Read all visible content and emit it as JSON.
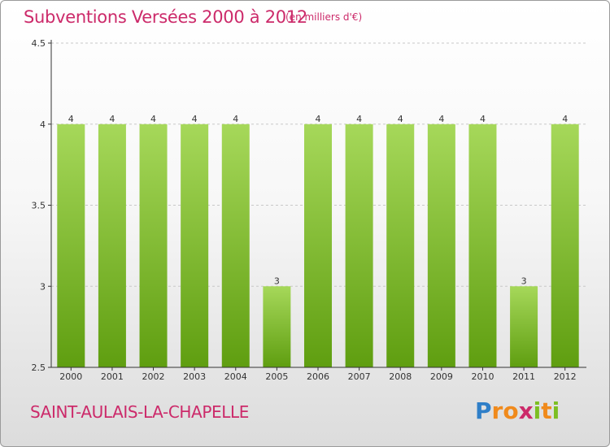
{
  "header": {
    "title": "Subventions Versées 2000 à 2012",
    "unit_note": "(en milliers d'€)"
  },
  "commune": "SAINT-AULAIS-LA-CHAPELLE",
  "brand": {
    "name": "Proxiti",
    "letters": [
      {
        "ch": "P",
        "color": "#2f7fc8"
      },
      {
        "ch": "r",
        "color": "#f08a1c"
      },
      {
        "ch": "o",
        "color": "#f08a1c"
      },
      {
        "ch": "x",
        "color": "#cc2a6a"
      },
      {
        "ch": "i",
        "color": "#7cbf22"
      },
      {
        "ch": "t",
        "color": "#f08a1c"
      },
      {
        "ch": "i",
        "color": "#7cbf22"
      }
    ]
  },
  "colors": {
    "title": "#cc2a6a",
    "bar_light": "#a6d85a",
    "bar_dark": "#5f9e10",
    "axis": "#333333",
    "grid": "#c8c8c8"
  },
  "chart_data": {
    "type": "bar",
    "categories": [
      "2000",
      "2001",
      "2002",
      "2003",
      "2004",
      "2005",
      "2006",
      "2007",
      "2008",
      "2009",
      "2010",
      "2011",
      "2012"
    ],
    "values": [
      4,
      4,
      4,
      4,
      4,
      3,
      4,
      4,
      4,
      4,
      4,
      3,
      4
    ],
    "data_labels": [
      "4",
      "4",
      "4",
      "4",
      "4",
      "3",
      "4",
      "4",
      "4",
      "4",
      "4",
      "3",
      "4"
    ],
    "ylim": [
      2.5,
      4.5
    ],
    "yticks": [
      2.5,
      3,
      3.5,
      4,
      4.5
    ],
    "ytick_labels": [
      "2.5",
      "3",
      "3.5",
      "4",
      "4.5"
    ],
    "grid": true,
    "legend": "none"
  }
}
